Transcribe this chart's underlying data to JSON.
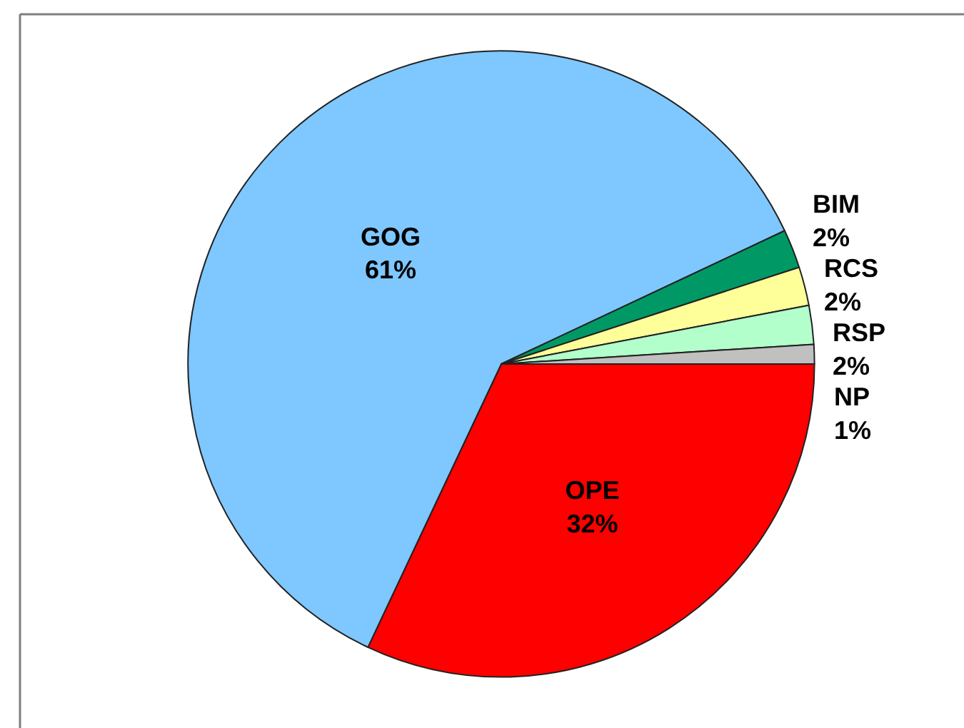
{
  "chart_data": {
    "type": "pie",
    "categories": [
      "OPE",
      "GOG",
      "BIM",
      "RCS",
      "RSP",
      "NP"
    ],
    "values": [
      32,
      61,
      2,
      2,
      2,
      1
    ],
    "colors": [
      "#ff0000",
      "#7fc7ff",
      "#009966",
      "#ffff99",
      "#b3ffcc",
      "#c0c0c0"
    ],
    "value_labels": [
      "32%",
      "61%",
      "2%",
      "2%",
      "2%",
      "1%"
    ]
  }
}
